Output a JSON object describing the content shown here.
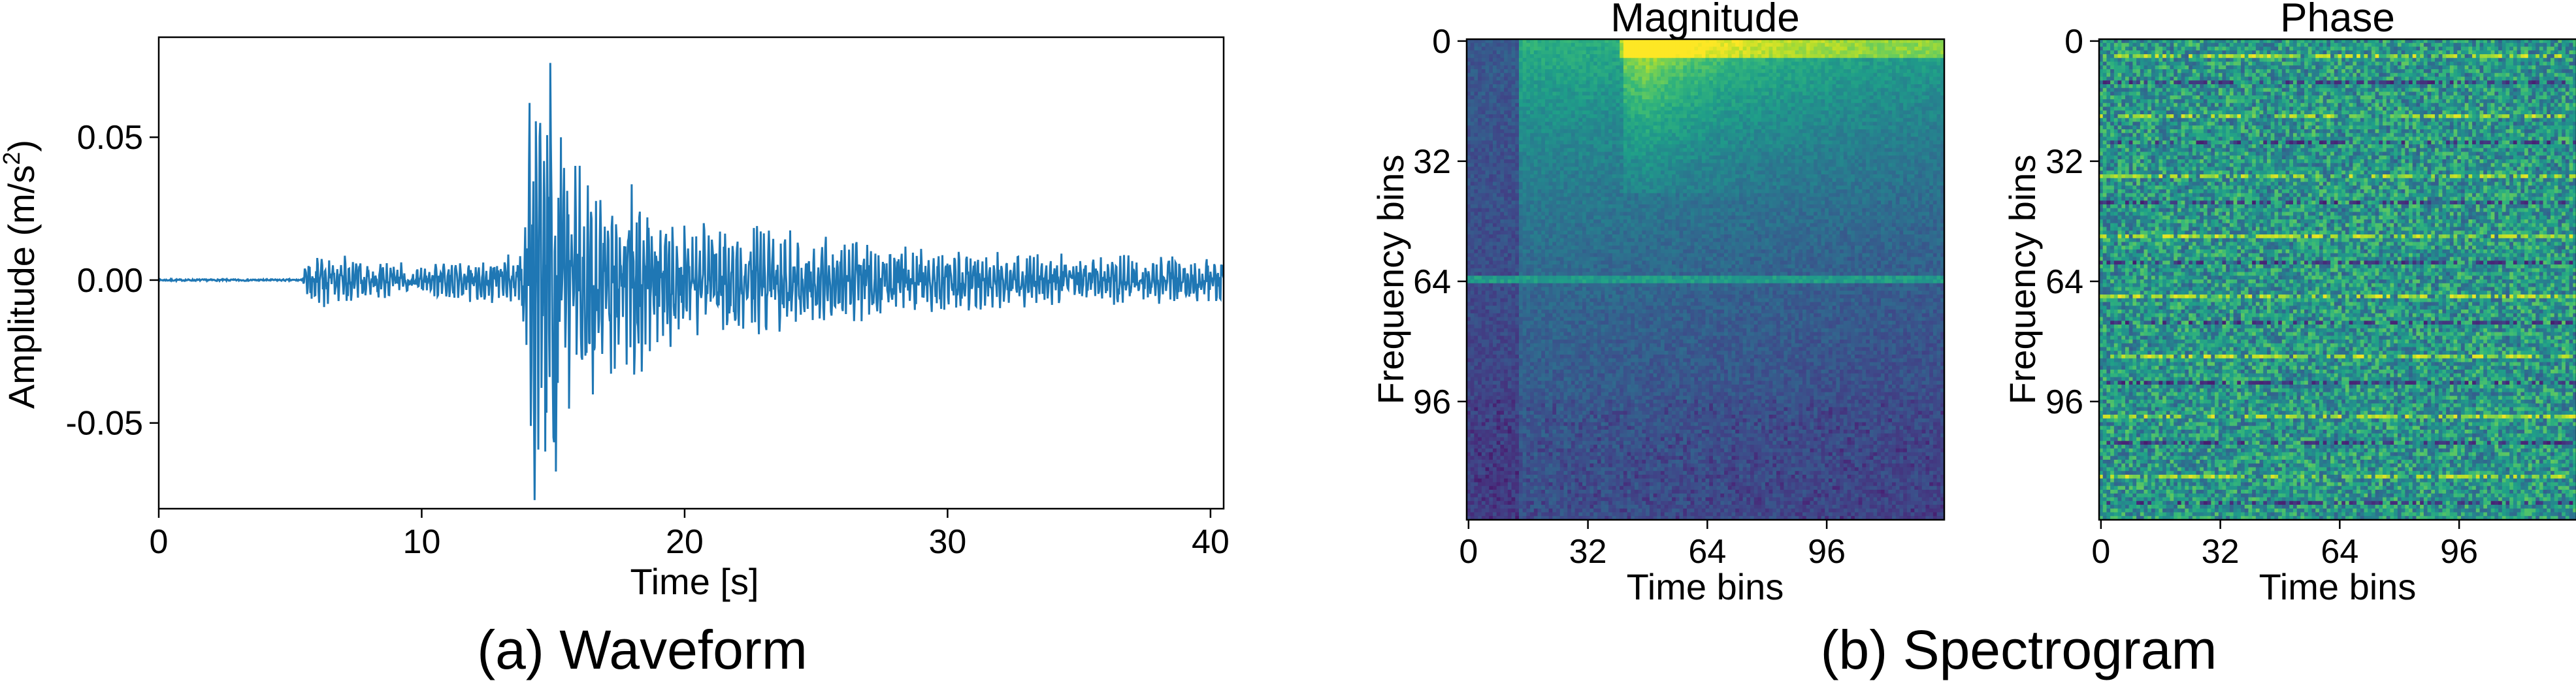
{
  "panels": {
    "waveform": {
      "caption": "(a) Waveform",
      "xlabel": "Time [s]",
      "ylabel_main": "Amplitude (m/s",
      "ylabel_sup": "2",
      "ylabel_end": ")"
    },
    "spectrogram": {
      "caption": "(b) Spectrogram"
    }
  },
  "colors": {
    "waveform_line": "#1f77b4",
    "viridis": [
      "#440154",
      "#482878",
      "#3e4989",
      "#31688e",
      "#26828e",
      "#1f9e89",
      "#35b779",
      "#6ece58",
      "#b5de2b",
      "#fde725"
    ]
  },
  "chart_data": [
    {
      "type": "line",
      "name": "waveform",
      "xlabel": "Time [s]",
      "ylabel": "Amplitude (m/s²)",
      "xlim": [
        0,
        40.5
      ],
      "ylim": [
        -0.08,
        0.085
      ],
      "xticks": [
        0,
        10,
        20,
        30,
        40
      ],
      "xtick_labels": [
        "0",
        "10",
        "20",
        "30",
        "40"
      ],
      "yticks": [
        0.05,
        0.0,
        -0.05
      ],
      "ytick_labels": [
        "0.05",
        "0.00",
        "-0.05"
      ],
      "grid": false,
      "series": [
        {
          "p_arrival_s": 5.4,
          "s_arrival_s": 14.2,
          "noise_level": 0.0003,
          "coda_level": 0.006,
          "x": [
            0,
            5.4,
            5.6,
            6.2,
            8.0,
            10.0,
            12.0,
            13.8,
            14.1,
            14.3,
            14.5,
            14.7,
            14.9,
            15.1,
            15.3,
            15.6,
            16.0,
            16.5,
            17.2,
            18.0,
            19.0,
            20.0,
            22.0,
            24.0,
            26.0,
            28.0,
            30.0,
            34.0,
            38.0,
            40.5
          ],
          "y": [
            0.0,
            0.0,
            0.006,
            -0.01,
            0.007,
            -0.006,
            0.008,
            -0.01,
            0.062,
            -0.077,
            0.055,
            -0.06,
            0.076,
            -0.067,
            0.05,
            -0.045,
            0.04,
            -0.04,
            0.035,
            -0.035,
            0.03,
            -0.022,
            0.02,
            -0.018,
            0.016,
            -0.012,
            0.012,
            -0.01,
            0.009,
            -0.008
          ]
        }
      ]
    },
    {
      "type": "heatmap",
      "name": "magnitude",
      "title": "Magnitude",
      "xlabel": "Time bins",
      "ylabel": "Frequency bins",
      "xticks": [
        0,
        32,
        64,
        96
      ],
      "yticks": [
        0,
        32,
        64,
        96
      ],
      "xlim": [
        0,
        127
      ],
      "ylim": [
        127,
        0
      ],
      "colormap": "viridis",
      "rows": 128,
      "cols": 128,
      "features": {
        "noise_cols_end": 14,
        "energy_onset_col": 14,
        "bright_region_cols": [
          42,
          105
        ],
        "bright_region_rows": [
          0,
          40
        ],
        "horizontal_line_row": 63
      }
    },
    {
      "type": "heatmap",
      "name": "phase",
      "title": "Phase",
      "xlabel": "Time bins",
      "ylabel": "Frequency bins",
      "xticks": [
        0,
        32,
        64,
        96
      ],
      "yticks": [
        0,
        32,
        64,
        96
      ],
      "xlim": [
        0,
        127
      ],
      "ylim": [
        127,
        0
      ],
      "colormap": "viridis",
      "rows": 128,
      "cols": 128,
      "features": {
        "pattern": "random-with-horizontal-streaks"
      }
    }
  ]
}
